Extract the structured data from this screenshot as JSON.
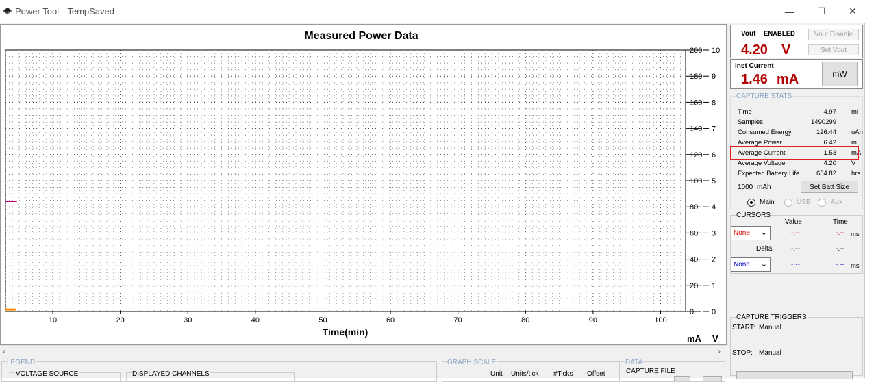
{
  "window": {
    "title": "Power Tool --TempSaved--",
    "minimize": "—",
    "maximize": "☐",
    "close": "✕"
  },
  "graph": {
    "title": "Measured Power Data",
    "xlabel": "Time(min)",
    "unit_left": "mA",
    "unit_right": "V"
  },
  "chart_data": {
    "type": "line",
    "title": "Measured Power Data",
    "xlabel": "Time(min)",
    "x_ticks": [
      10,
      20,
      30,
      40,
      50,
      60,
      70,
      80,
      90,
      100
    ],
    "xlim": [
      3,
      103.7
    ],
    "y_left_label": "mA",
    "y_left_ticks": [
      0,
      20,
      40,
      60,
      80,
      100,
      120,
      140,
      160,
      180,
      200
    ],
    "ylim_left": [
      0,
      200
    ],
    "y_right_label": "V",
    "y_right_ticks": [
      0,
      1,
      2,
      3,
      4,
      5,
      6,
      7,
      8,
      9,
      10
    ],
    "ylim_right": [
      0,
      10
    ],
    "grid": true,
    "series": [
      {
        "axis": "left",
        "color": "#ff8c00",
        "points": [
          [
            3.0,
            1.5
          ],
          [
            4.5,
            1.5
          ]
        ]
      },
      {
        "axis": "right",
        "color": "#c0007a",
        "points": [
          [
            3.0,
            4.2
          ],
          [
            4.7,
            4.2
          ]
        ]
      }
    ]
  },
  "vout": {
    "label": "Vout",
    "status": "ENABLED",
    "value": "4.20",
    "unit": "V",
    "disable_btn": "Vout Disable",
    "set_btn": "Set Vout"
  },
  "inst": {
    "label": "Inst Current",
    "value": "1.46",
    "unit": "mA",
    "mode_btn": "mW"
  },
  "stats": {
    "header": "CAPTURE STATS",
    "rows": [
      {
        "label": "Time",
        "value": "4.97",
        "unit": "mi"
      },
      {
        "label": "Samples",
        "value": "1490299",
        "unit": ""
      },
      {
        "label": "Consumed Energy",
        "value": "126.44",
        "unit": "uAh"
      },
      {
        "label": "Average Power",
        "value": "6.42",
        "unit": "m"
      },
      {
        "label": "Average Current",
        "value": "1.53",
        "unit": "mA"
      },
      {
        "label": "Average Voltage",
        "value": "4.20",
        "unit": "V"
      },
      {
        "label": "Expected Battery Life",
        "value": "654.82",
        "unit": "hrs"
      }
    ],
    "batt_size": "1000",
    "batt_unit": "mAh",
    "batt_btn": "Set Batt Size"
  },
  "source": {
    "main": "Main",
    "usb": "USB",
    "aux": "Aux",
    "selected": "main"
  },
  "cursors": {
    "header": "CURSORS",
    "value_hdr": "Value",
    "time_hdr": "Time",
    "delta_hdr": "Delta",
    "c1": {
      "select": "None",
      "value": "-.--",
      "time": "-.--",
      "unit": "ms"
    },
    "delta": {
      "value": "-.--",
      "time": "-.--"
    },
    "c2": {
      "select": "None",
      "value": "-.--",
      "time": "-.--",
      "unit": "ms"
    }
  },
  "triggers": {
    "header": "CAPTURE TRIGGERS",
    "start_label": "START:",
    "start_val": "Manual",
    "stop_label": "STOP:",
    "stop_val": "Manual"
  },
  "bottom": {
    "legend": "LEGEND",
    "voltage_source": "VOLTAGE SOURCE",
    "displayed_channels": "DISPLAYED CHANNELS",
    "graph_scale": "GRAPH SCALE",
    "unit_col": "Unit",
    "units_tick": "Units/tick",
    "ticks": "#Ticks",
    "offset": "Offset",
    "data": "DATA",
    "capture_file": "CAPTURE FILE"
  },
  "colors": {
    "accent_red": "#b10000",
    "highlight": "#e02020",
    "group_label": "#8aa3c3",
    "cursor1": "#e00000",
    "cursor2": "#0000cc"
  }
}
